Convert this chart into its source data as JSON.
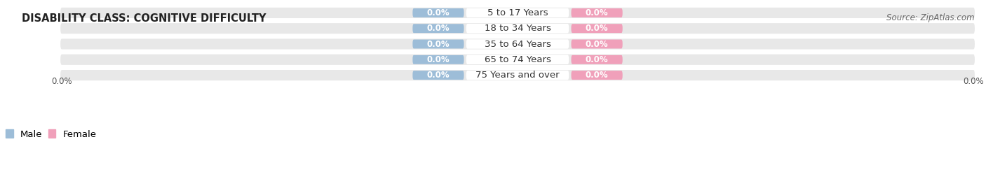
{
  "title": "DISABILITY CLASS: COGNITIVE DIFFICULTY",
  "source": "Source: ZipAtlas.com",
  "categories": [
    "5 to 17 Years",
    "18 to 34 Years",
    "35 to 64 Years",
    "65 to 74 Years",
    "75 Years and over"
  ],
  "male_values": [
    0.0,
    0.0,
    0.0,
    0.0,
    0.0
  ],
  "female_values": [
    0.0,
    0.0,
    0.0,
    0.0,
    0.0
  ],
  "male_color": "#9dbdd8",
  "female_color": "#f0a0ba",
  "bar_bg_color": "#e8e8e8",
  "row_bg_color": "#f2f2f2",
  "title_fontsize": 10.5,
  "source_fontsize": 8.5,
  "value_fontsize": 8.5,
  "category_fontsize": 9.5,
  "legend_fontsize": 9.5,
  "bg_color": "#ffffff",
  "axis_label_left": "0.0%",
  "axis_label_right": "0.0%"
}
